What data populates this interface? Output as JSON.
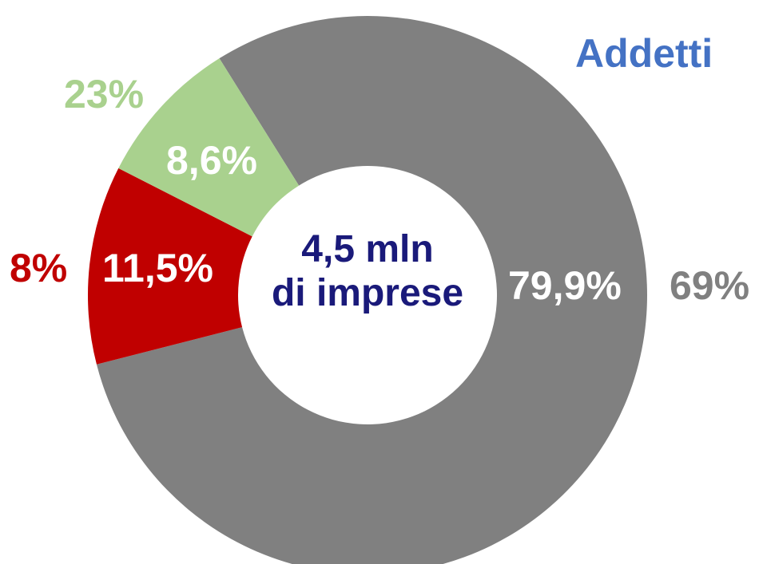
{
  "chart_data": {
    "type": "pie",
    "variant": "donut",
    "title": "Addetti",
    "center_label": {
      "line1": "4,5 mln",
      "line2": "di imprese"
    },
    "slices": [
      {
        "inner_label": "79,9%",
        "inner_value": 79.9,
        "outer_label": "69%",
        "outer_value": 69,
        "color": "#808080"
      },
      {
        "inner_label": "11,5%",
        "inner_value": 11.5,
        "outer_label": "8%",
        "outer_value": 8,
        "color": "#c00000"
      },
      {
        "inner_label": "8,6%",
        "inner_value": 8.6,
        "outer_label": "23%",
        "outer_value": 23,
        "color": "#a9d18e"
      }
    ],
    "colors": {
      "title": "#4472c4",
      "center_text": "#1a1a7a",
      "inner_label": "#ffffff"
    }
  }
}
